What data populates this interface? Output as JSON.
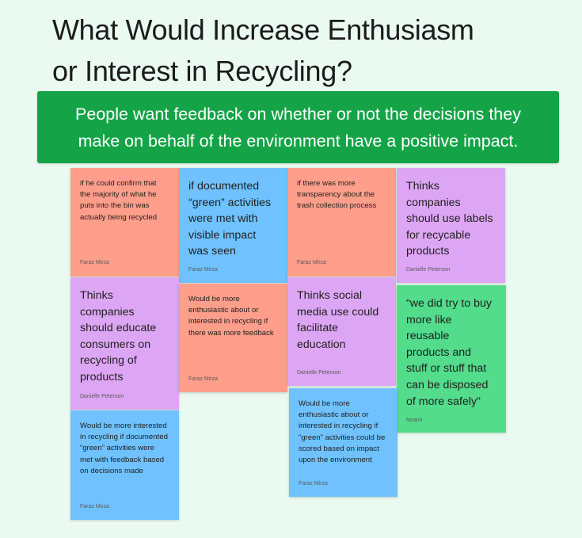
{
  "title": {
    "line1": "What Would Increase Enthusiasm",
    "line2": "or Interest in Recycling?"
  },
  "banner": {
    "line1": "People want feedback on whether or not the decisions they",
    "line2": "make on behalf of the environment have a positive impact."
  },
  "colors": {
    "background": "#eafaf0",
    "banner": "#14a447",
    "red_note": "#ff9e8a",
    "blue_note": "#6fc2ff",
    "purple_note": "#dda6f4",
    "green_note": "#52dc8b"
  },
  "notes": [
    {
      "color": "red",
      "text": "if he could confirm that\nthe majority of what he\nputs into the bin was\nactually being recycled",
      "author": "Faraz Mirza"
    },
    {
      "color": "blue",
      "text": "if documented\n“green” activities\nwere met with\nvisible impact\nwas seen",
      "author": "Faraz Mirza"
    },
    {
      "color": "red",
      "text": "if there was more\ntransparency about the\ntrash collection process",
      "author": "Faraz Mirza"
    },
    {
      "color": "purple",
      "text": "Thinks\ncompanies\nshould use labels\nfor recycable\nproducts",
      "author": "Danielle Peterson"
    },
    {
      "color": "purple",
      "text": "Thinks\ncompanies\nshould educate\nconsumers on\nrecycling of\nproducts",
      "author": "Danielle Peterson"
    },
    {
      "color": "red",
      "text": "Would be more\nenthusiastic about or\ninterested in recycling if\nthere was more feedback",
      "author": "Faraz Mirza"
    },
    {
      "color": "purple",
      "text": "Thinks social\nmedia use could\nfacilitate\neducation",
      "author": "Danielle Peterson"
    },
    {
      "color": "green",
      "text": "“we did try to buy\nmore like\nreusable\nproducts and\nstuff or stuff that\ncan be disposed\nof more safely”",
      "author": "Noami"
    },
    {
      "color": "blue",
      "text": "Would be more  interested\nin recycling if documented\n“green” activities were\nmet with feedback based\non decisions made",
      "author": "Faraz Mirza"
    },
    {
      "color": "blue",
      "text": "Would be more\nenthusiastic about or\ninterested in recycling if\n“green” activities could be\nscored based on impact\nupon the environment",
      "author": "Faraz Mirza"
    }
  ]
}
